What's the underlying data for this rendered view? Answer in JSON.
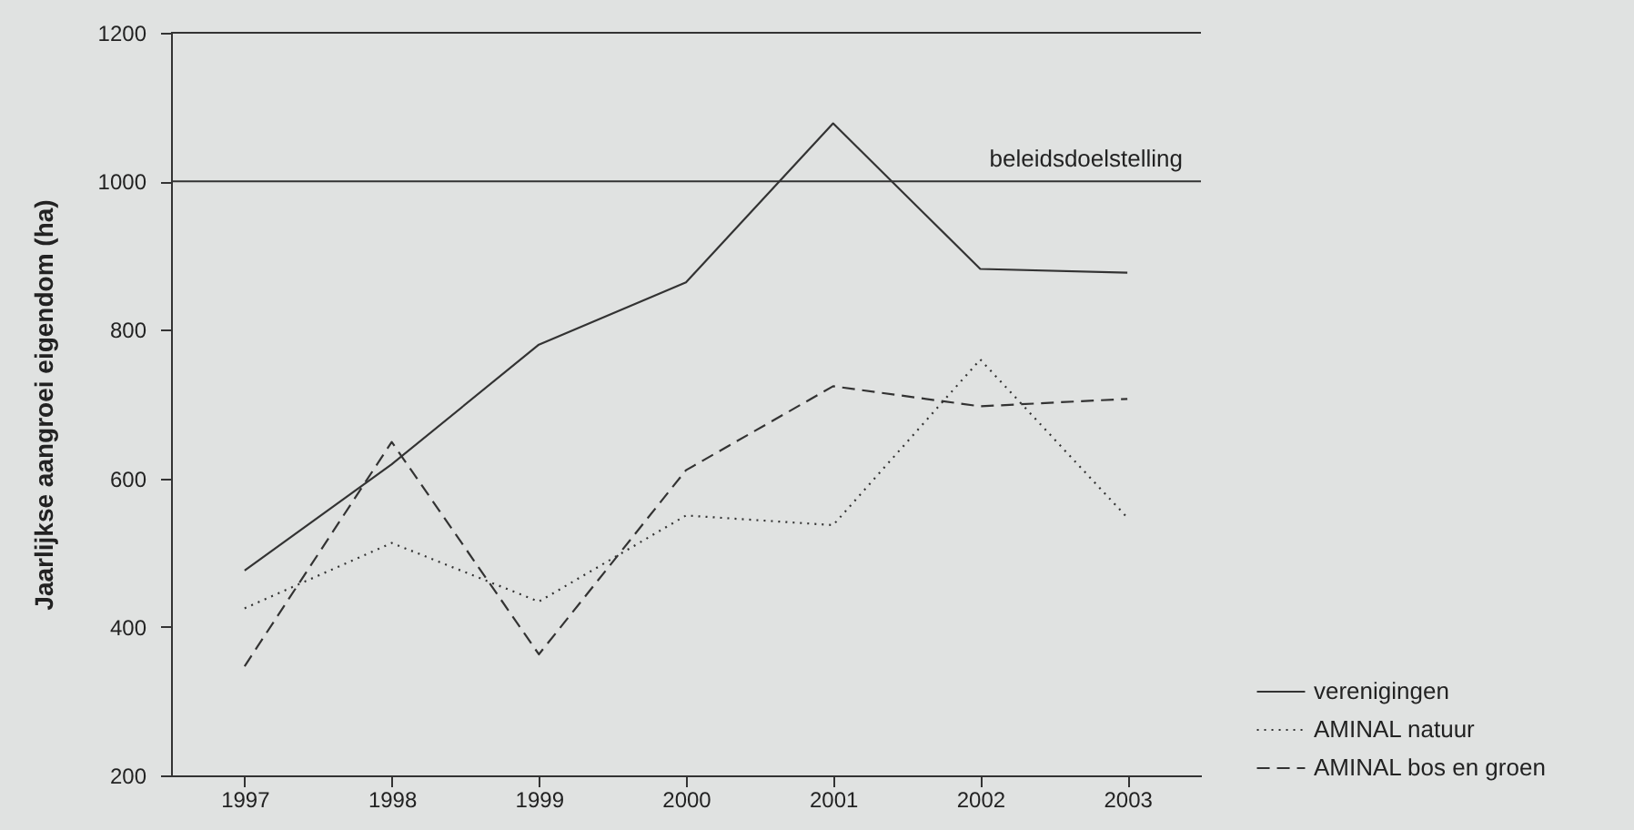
{
  "chart_data": {
    "type": "line",
    "ylabel": "Jaarlijkse aangroei eigendom (ha)",
    "categories": [
      "1997",
      "1998",
      "1999",
      "2000",
      "2001",
      "2002",
      "2003"
    ],
    "series": [
      {
        "name": "verenigingen",
        "color": "#333333",
        "line_style": "solid",
        "values": [
          476,
          619,
          780,
          864,
          1078,
          882,
          877
        ]
      },
      {
        "name": "AMINAL natuur",
        "color": "#333333",
        "line_style": "dotted",
        "values": [
          425,
          513,
          434,
          550,
          537,
          760,
          547
        ]
      },
      {
        "name": "AMINAL bos en groen",
        "color": "#333333",
        "line_style": "dashed",
        "values": [
          347,
          649,
          363,
          611,
          724,
          697,
          707
        ]
      }
    ],
    "ylim": [
      200,
      1200
    ],
    "yticks": [
      200,
      400,
      600,
      800,
      1000,
      1200
    ],
    "ref_lines": [
      {
        "axis": "y",
        "value": 1000,
        "label": "beleidsdoelstelling",
        "color": "#333333"
      }
    ],
    "legend": "bottom right",
    "marker": "none"
  }
}
